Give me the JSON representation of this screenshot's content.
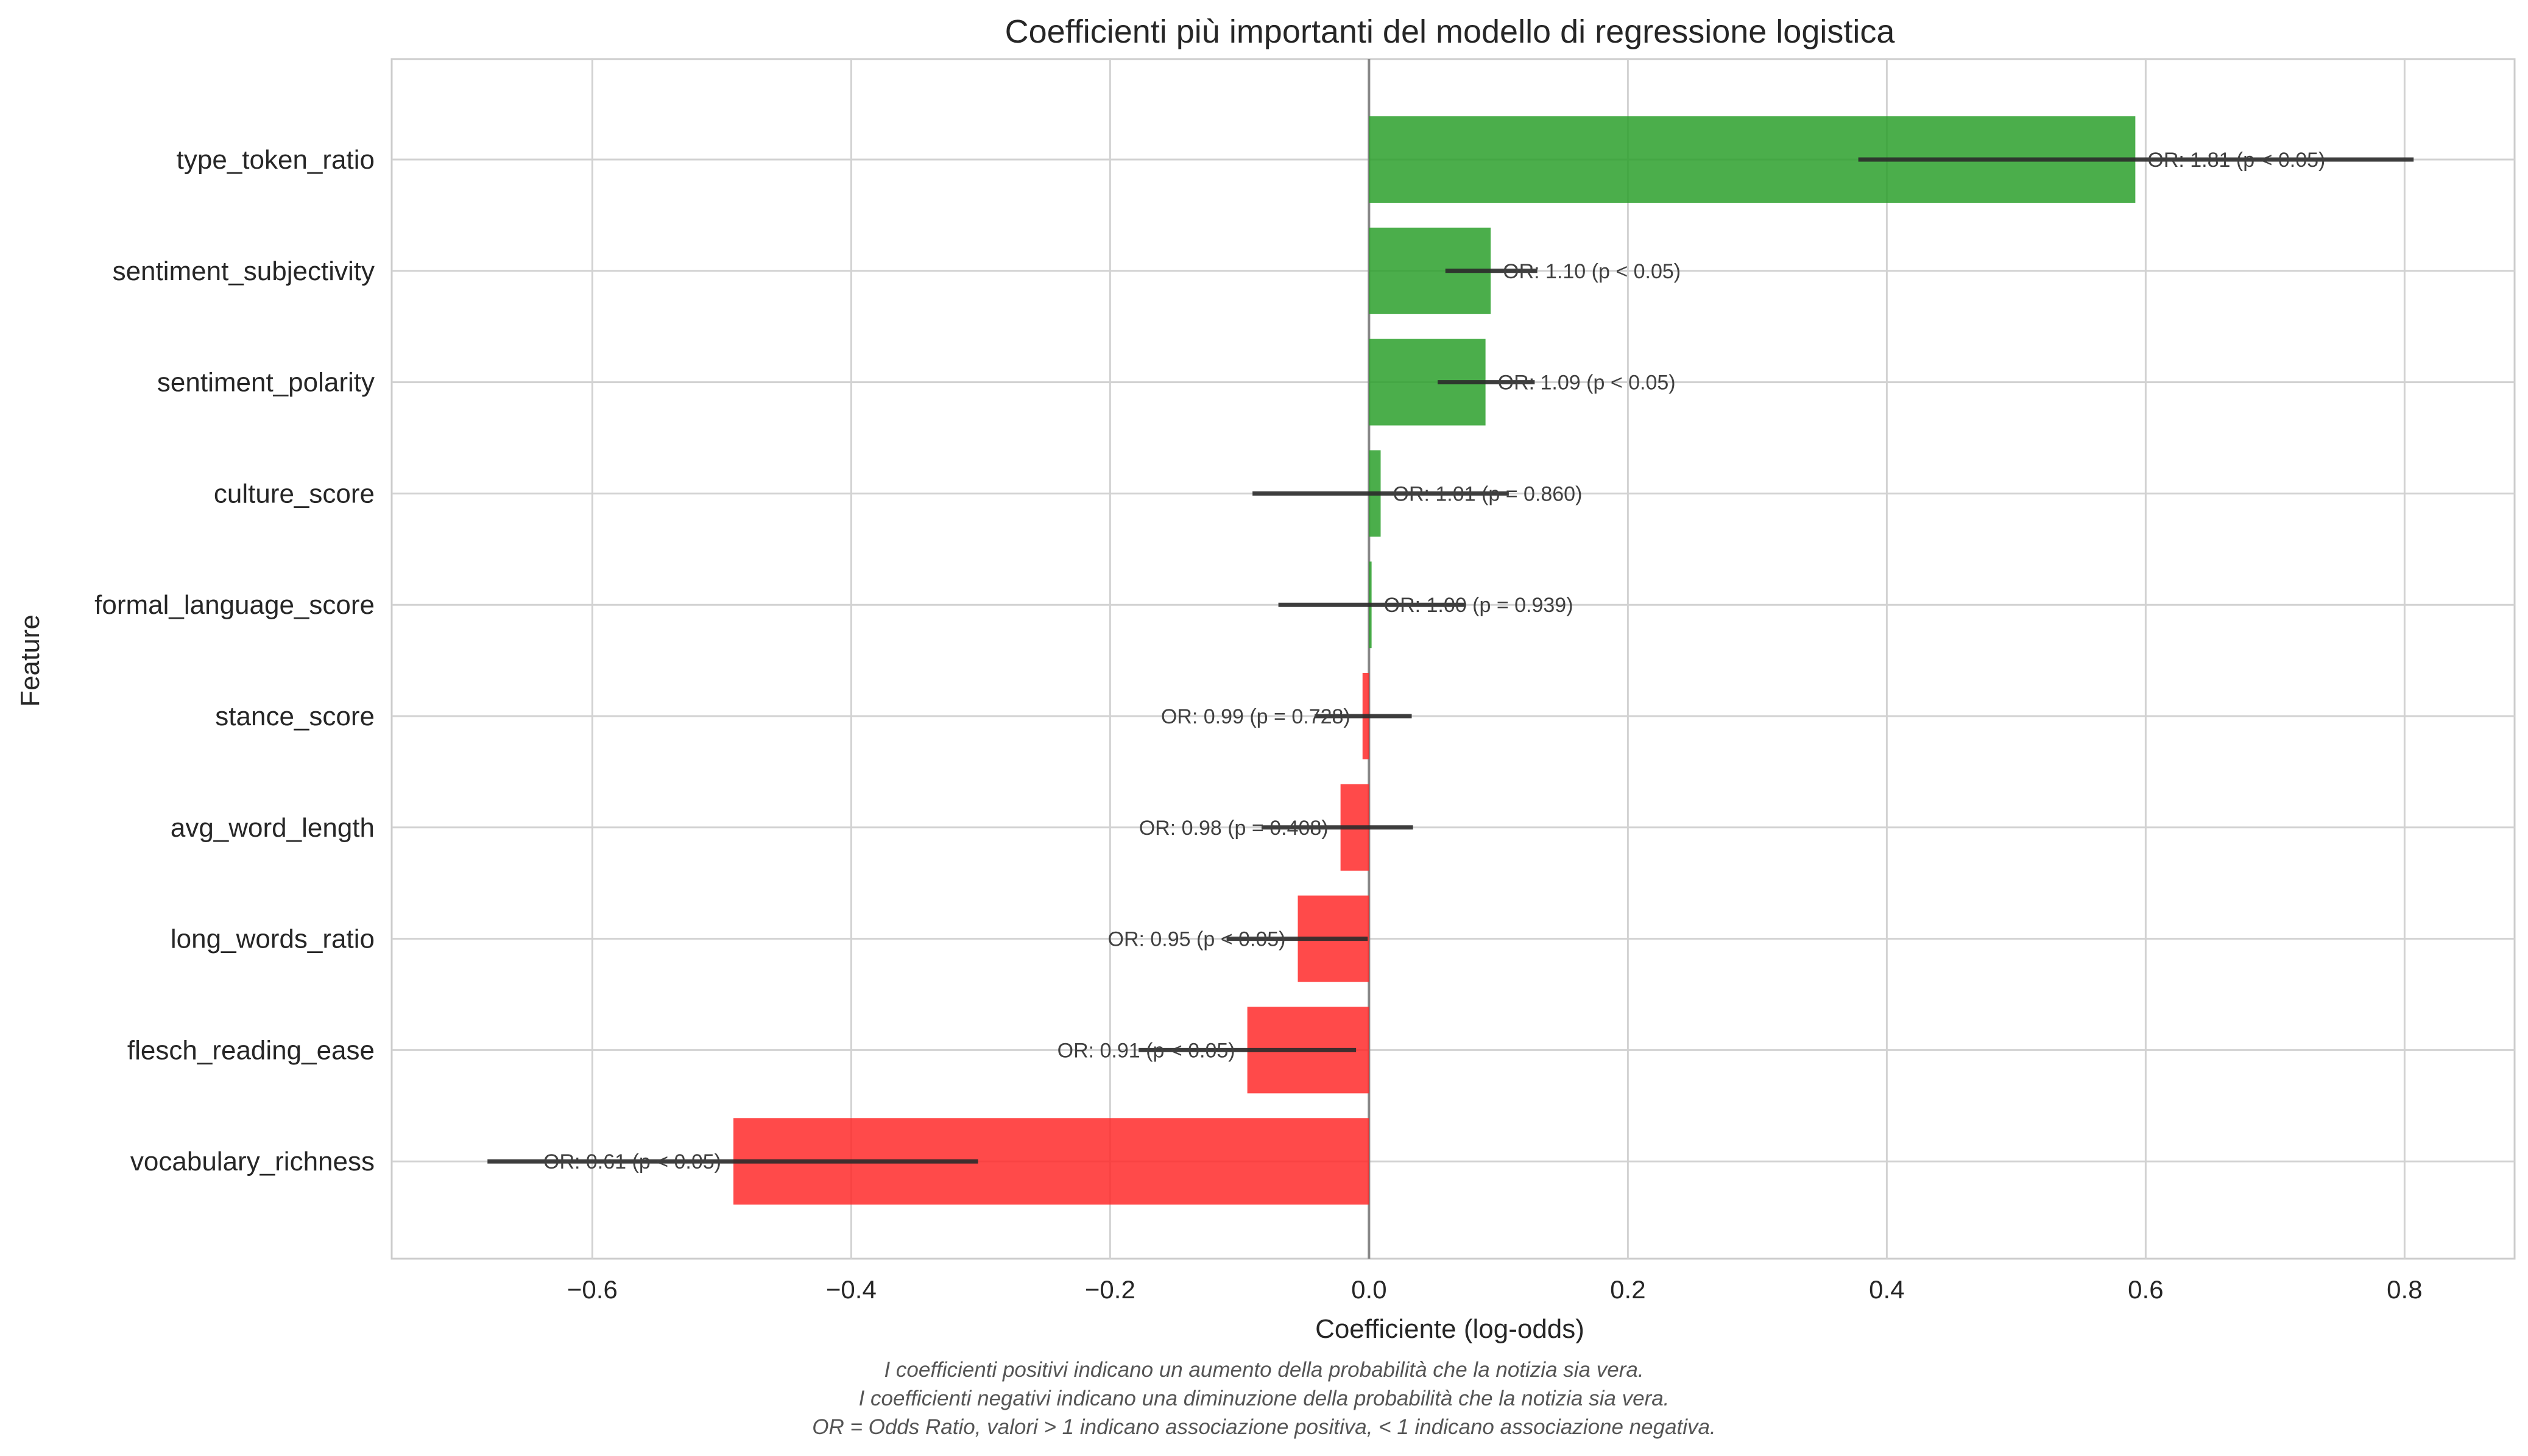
{
  "chart_data": {
    "type": "bar",
    "orientation": "horizontal",
    "title": "Coefficienti più importanti del modello di regressione logistica",
    "xlabel": "Coefficiente (log-odds)",
    "ylabel": "Feature",
    "xlim": [
      -0.755,
      0.885
    ],
    "xticks": [
      -0.6,
      -0.4,
      -0.2,
      0.0,
      0.2,
      0.4,
      0.6,
      0.8
    ],
    "xtick_labels": [
      "−0.6",
      "−0.4",
      "−0.2",
      "0.0",
      "0.2",
      "0.4",
      "0.6",
      "0.8"
    ],
    "grid": true,
    "colors": {
      "positive": "#2ca02c",
      "negative": "#ff2a2a",
      "errorbar": "#2b2b2b",
      "zero_line": "#888888"
    },
    "bars": [
      {
        "feature": "type_token_ratio",
        "value": 0.592,
        "ci": [
          0.378,
          0.807
        ],
        "annotation": "OR: 1.81 (p < 0.05)"
      },
      {
        "feature": "sentiment_subjectivity",
        "value": 0.094,
        "ci": [
          0.059,
          0.13
        ],
        "annotation": "OR: 1.10 (p < 0.05)"
      },
      {
        "feature": "sentiment_polarity",
        "value": 0.09,
        "ci": [
          0.053,
          0.128
        ],
        "annotation": "OR: 1.09 (p < 0.05)"
      },
      {
        "feature": "culture_score",
        "value": 0.009,
        "ci": [
          -0.09,
          0.108
        ],
        "annotation": "OR: 1.01 (p = 0.860)"
      },
      {
        "feature": "formal_language_score",
        "value": 0.002,
        "ci": [
          -0.07,
          0.075
        ],
        "annotation": "OR: 1.00 (p = 0.939)"
      },
      {
        "feature": "stance_score",
        "value": -0.005,
        "ci": [
          -0.042,
          0.033
        ],
        "annotation": "OR: 0.99 (p = 0.728)"
      },
      {
        "feature": "avg_word_length",
        "value": -0.022,
        "ci": [
          -0.083,
          0.034
        ],
        "annotation": "OR: 0.98 (p = 0.408)"
      },
      {
        "feature": "long_words_ratio",
        "value": -0.055,
        "ci": [
          -0.11,
          -0.001
        ],
        "annotation": "OR: 0.95 (p < 0.05)"
      },
      {
        "feature": "flesch_reading_ease",
        "value": -0.094,
        "ci": [
          -0.178,
          -0.01
        ],
        "annotation": "OR: 0.91 (p < 0.05)"
      },
      {
        "feature": "vocabulary_richness",
        "value": -0.491,
        "ci": [
          -0.681,
          -0.302
        ],
        "annotation": "OR: 0.61 (p < 0.05)"
      }
    ]
  },
  "caption": {
    "line1": "I coefficienti positivi indicano un aumento della probabilità che la notizia sia vera.",
    "line2": "I coefficienti negativi indicano una diminuzione della probabilità che la notizia sia vera.",
    "line3": "OR = Odds Ratio, valori > 1 indicano associazione positiva, < 1 indicano associazione negativa."
  }
}
